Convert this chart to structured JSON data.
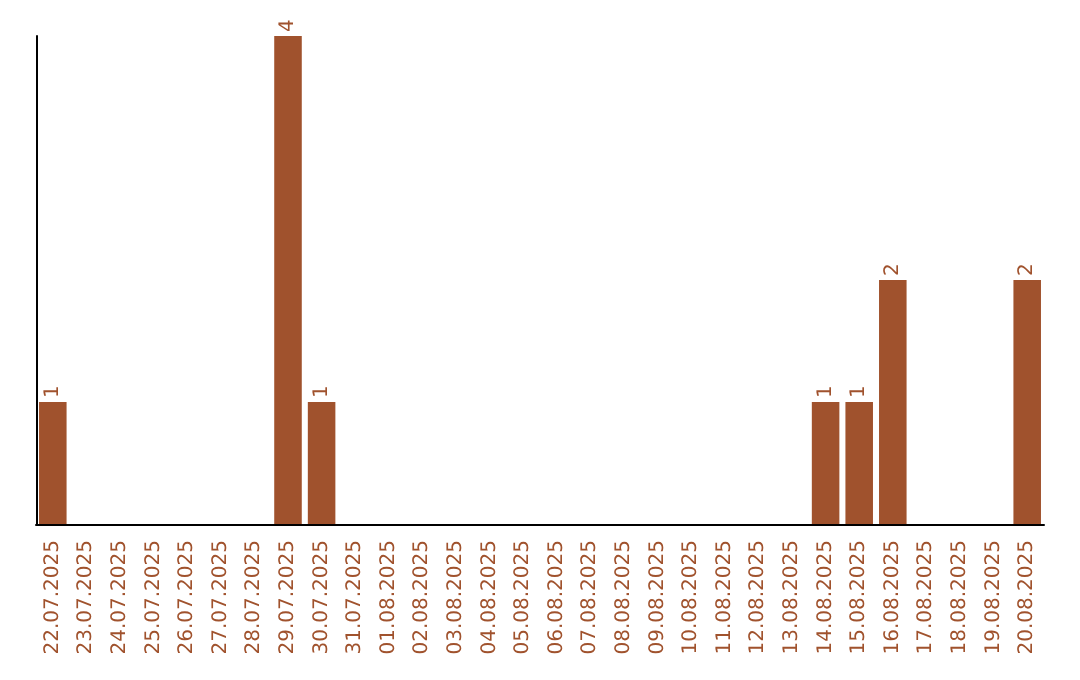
{
  "chart_data": {
    "type": "bar",
    "categories": [
      "22.07.2025",
      "23.07.2025",
      "24.07.2025",
      "25.07.2025",
      "26.07.2025",
      "27.07.2025",
      "28.07.2025",
      "29.07.2025",
      "30.07.2025",
      "31.07.2025",
      "01.08.2025",
      "02.08.2025",
      "03.08.2025",
      "04.08.2025",
      "05.08.2025",
      "06.08.2025",
      "07.08.2025",
      "08.08.2025",
      "09.08.2025",
      "10.08.2025",
      "11.08.2025",
      "12.08.2025",
      "13.08.2025",
      "14.08.2025",
      "15.08.2025",
      "16.08.2025",
      "17.08.2025",
      "18.08.2025",
      "19.08.2025",
      "20.08.2025"
    ],
    "values": [
      1,
      0,
      0,
      0,
      0,
      0,
      0,
      4,
      1,
      0,
      0,
      0,
      0,
      0,
      0,
      0,
      0,
      0,
      0,
      0,
      0,
      0,
      0,
      1,
      1,
      2,
      0,
      0,
      0,
      2
    ],
    "value_labels": [
      "1",
      null,
      null,
      null,
      null,
      null,
      null,
      "4",
      "1",
      null,
      null,
      null,
      null,
      null,
      null,
      null,
      null,
      null,
      null,
      null,
      null,
      null,
      null,
      "1",
      "1",
      "2",
      null,
      null,
      null,
      "2"
    ],
    "color": "#a0522d",
    "grid": false,
    "tick_labels": "x"
  }
}
